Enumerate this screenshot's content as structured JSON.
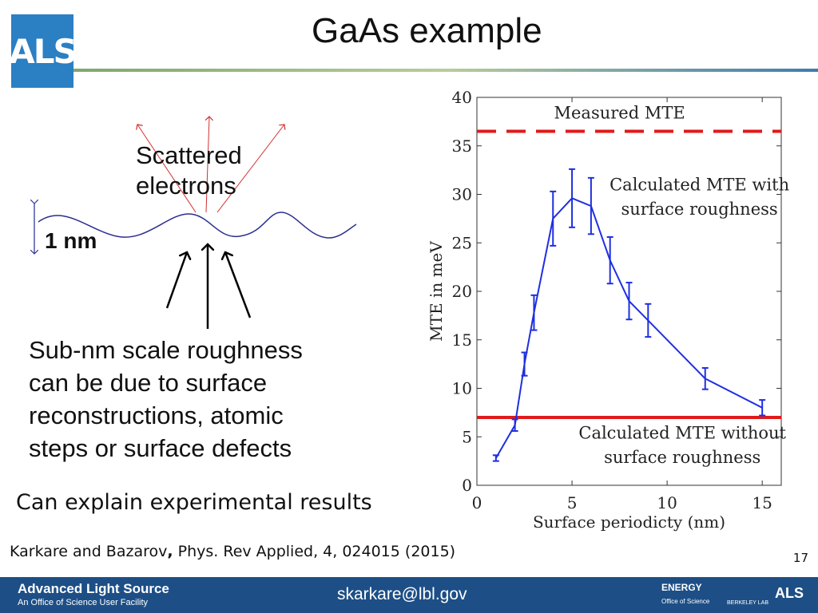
{
  "header": {
    "logo_text": "ALS",
    "title": "GaAs example"
  },
  "figure": {
    "scattered_label": [
      "Scattered",
      "electrons"
    ],
    "roughness_scale": "1 nm",
    "roughness_text": [
      "Sub-nm scale roughness",
      "can be due to surface",
      "reconstructions, atomic",
      "steps or surface defects"
    ]
  },
  "conclusion": "Can explain experimental results",
  "citation": {
    "authors": "Karkare and Bazarov",
    "sep": ",",
    "ref": " Phys. Rev Applied, 4, 024015 (2015)"
  },
  "page_number": "17",
  "footer": {
    "org_name": "Advanced Light Source",
    "org_sub": "An Office of Science User Facility",
    "email": "skarkare@lbl.gov",
    "doe": "ENERGY",
    "doe_sub": "Office of Science",
    "berkeley": "BERKELEY LAB",
    "als": "ALS"
  },
  "colors": {
    "logo": "#2b7fc3",
    "footer": "#1d4f86",
    "line": "#1f2fe0",
    "measured": "#e01a1a",
    "baseline": "#e01a1a"
  },
  "chart_data": {
    "type": "line",
    "xlabel": "Surface periodicty (nm)",
    "ylabel": "MTE in meV",
    "xlim": [
      0,
      16
    ],
    "ylim": [
      0,
      40
    ],
    "xticks": [
      0,
      5,
      10,
      15
    ],
    "yticks": [
      0,
      5,
      10,
      15,
      20,
      25,
      30,
      35,
      40
    ],
    "series": [
      {
        "name": "Calculated MTE with surface roughness",
        "x": [
          1,
          2,
          2.5,
          3,
          4,
          5,
          6,
          7,
          8,
          9,
          12,
          15
        ],
        "y": [
          2.8,
          6.2,
          12.5,
          17.8,
          27.5,
          29.6,
          28.8,
          23.2,
          19.0,
          17.0,
          11.0,
          8.0
        ],
        "err": [
          0.3,
          0.6,
          1.2,
          1.8,
          2.8,
          3.0,
          2.9,
          2.4,
          1.9,
          1.7,
          1.1,
          0.8
        ]
      }
    ],
    "hlines": [
      {
        "name": "Measured MTE",
        "y": 36.5,
        "style": "dashed"
      },
      {
        "name": "Calculated MTE without surface roughness",
        "y": 7.0,
        "style": "solid"
      }
    ],
    "annotations": {
      "measured": "Measured MTE",
      "with": [
        "Calculated MTE with",
        "surface roughness"
      ],
      "without": [
        "Calculated MTE without",
        "surface roughness"
      ]
    }
  }
}
